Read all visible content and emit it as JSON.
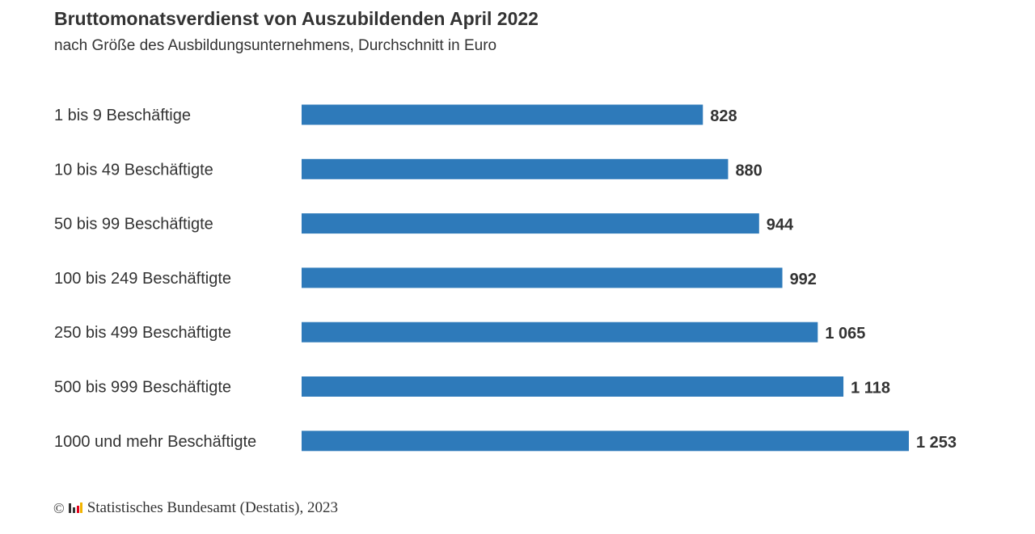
{
  "chart_data": {
    "type": "bar",
    "orientation": "horizontal",
    "title": "Bruttomonatsverdienst von Auszubildenden April 2022",
    "subtitle": "nach Größe des Ausbildungsunternehmens, Durchschnitt in Euro",
    "categories": [
      "1 bis 9 Beschäftige",
      "10 bis 49 Beschäftigte",
      "50 bis 99 Beschäftigte",
      "100 bis 249 Beschäftigte",
      "250 bis 499 Beschäftigte",
      "500 bis 999 Beschäftigte",
      "1000 und mehr Beschäftigte"
    ],
    "values": [
      828,
      880,
      944,
      992,
      1065,
      1118,
      1253
    ],
    "value_labels": [
      "828",
      "880",
      "944",
      "992",
      "1 065",
      "1 118",
      "1 253"
    ],
    "xlim": [
      0,
      1253
    ],
    "xlabel": "",
    "ylabel": "",
    "grid": false,
    "legend": "none",
    "bar_color": "#2E7ABA"
  },
  "footer": {
    "copyright_symbol": "©",
    "logo_icon": "destatis-logo-icon",
    "source": "Statistisches Bundesamt (Destatis), 2023"
  }
}
